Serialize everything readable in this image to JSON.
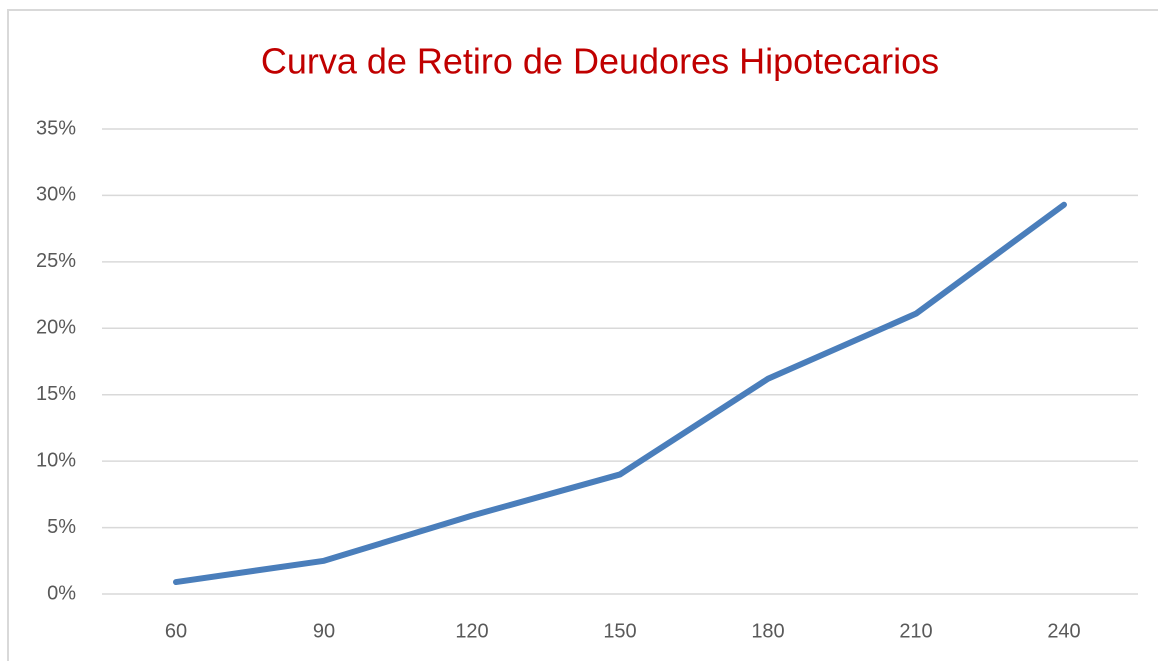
{
  "chart_data": {
    "type": "line",
    "title": "Curva de Retiro de Deudores Hipotecarios",
    "categories": [
      "60",
      "90",
      "120",
      "150",
      "180",
      "210",
      "240"
    ],
    "values": [
      0.9,
      2.5,
      5.9,
      9.0,
      16.2,
      21.1,
      29.3
    ],
    "color": "#4a7ebb",
    "ylim": [
      0,
      35
    ],
    "yticks": [
      {
        "value": 0,
        "label": "0%"
      },
      {
        "value": 5,
        "label": "5%"
      },
      {
        "value": 10,
        "label": "10%"
      },
      {
        "value": 15,
        "label": "15%"
      },
      {
        "value": 20,
        "label": "20%"
      },
      {
        "value": 25,
        "label": "25%"
      },
      {
        "value": 30,
        "label": "30%"
      },
      {
        "value": 35,
        "label": "35%"
      }
    ],
    "grid": true
  }
}
